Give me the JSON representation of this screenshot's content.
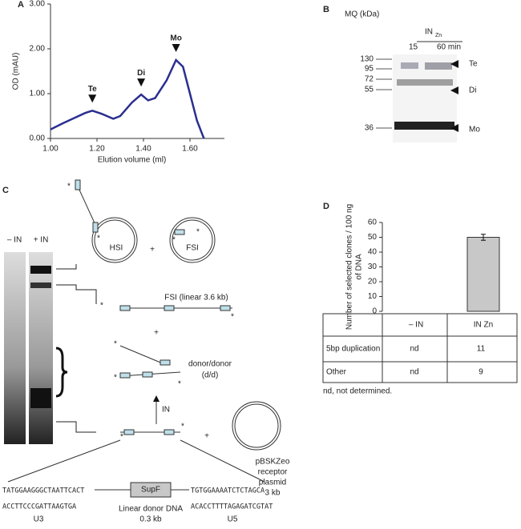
{
  "chart_data": [
    {
      "type": "line",
      "panel": "A",
      "ylabel": "OD (mAU)",
      "xlabel": "Elution volume (ml)",
      "color": "#2b2f8f",
      "x": [
        1.0,
        1.05,
        1.1,
        1.15,
        1.18,
        1.22,
        1.27,
        1.3,
        1.35,
        1.39,
        1.42,
        1.45,
        1.5,
        1.54,
        1.57,
        1.6,
        1.63,
        1.66
      ],
      "values": [
        0.2,
        0.33,
        0.45,
        0.57,
        0.62,
        0.55,
        0.44,
        0.5,
        0.8,
        0.98,
        0.85,
        0.9,
        1.3,
        1.75,
        1.6,
        1.0,
        0.4,
        0.0
      ],
      "xlim": [
        1.0,
        1.7
      ],
      "ylim": [
        0,
        3
      ],
      "xticks": [
        {
          "value": 1.0,
          "label": "1.00"
        },
        {
          "value": 1.2,
          "label": "1.20"
        },
        {
          "value": 1.4,
          "label": "1.40"
        },
        {
          "value": 1.6,
          "label": "1.60"
        }
      ],
      "yticks": [
        {
          "value": 0,
          "label": "0.00"
        },
        {
          "value": 1,
          "label": "1.00"
        },
        {
          "value": 2,
          "label": "2.00"
        },
        {
          "value": 3,
          "label": "3.00"
        }
      ],
      "annotations": [
        {
          "text": "Te",
          "x": 1.18,
          "y": 0.62
        },
        {
          "text": "Di",
          "x": 1.39,
          "y": 0.98
        },
        {
          "text": "Mo",
          "x": 1.54,
          "y": 1.75
        }
      ]
    },
    {
      "type": "bar",
      "panel": "D",
      "ylabel": [
        "Number of selected clones / 100 ng",
        "of DNA"
      ],
      "color": "#c8c8c8",
      "categories": [
        "– IN",
        "IN Zn"
      ],
      "values": [
        null,
        50
      ],
      "errors": [
        null,
        2
      ],
      "ylim": [
        0,
        60
      ],
      "yticks": [
        0,
        10,
        20,
        30,
        40,
        50,
        60
      ]
    }
  ],
  "panel_b": {
    "label": "B",
    "unit": "MQ (kDa)",
    "enzyme": "IN",
    "enzyme_sub": "Zn",
    "times": [
      "15",
      "60 min"
    ],
    "markers": [
      "130",
      "95",
      "72",
      "55",
      "36"
    ],
    "bands": [
      "Te",
      "Di",
      "Mo"
    ]
  },
  "panel_c": {
    "label": "C",
    "lanes": [
      "– IN",
      "+ IN"
    ],
    "hsi": "HSI",
    "fsi": "FSI",
    "plus": "+",
    "fsi_linear": "FSI (linear 3.6 kb)",
    "dd": [
      "donor/donor",
      "(d/d)"
    ],
    "in": "IN",
    "plasmid": [
      "pBSKZeo",
      "receptor",
      "plasmid",
      "3 kb"
    ],
    "u3_seq": [
      "TATGGAAGGGCTAATTCACT",
      "ACCTTCCCGATTAAGTGA"
    ],
    "supf": "SupF",
    "u5_seq": [
      "TGTGGAAAATCTCTAGCA",
      "ACACCTTTTAGAGATCGTAT"
    ],
    "donor": [
      "Linear donor DNA",
      "0.3 kb"
    ],
    "u3": "U3",
    "u5": "U5"
  },
  "panel_d_table": {
    "rows": [
      [
        "5bp duplication",
        "nd",
        "11"
      ],
      [
        "Other",
        "nd",
        "9"
      ]
    ],
    "footnote": "nd, not determined."
  }
}
